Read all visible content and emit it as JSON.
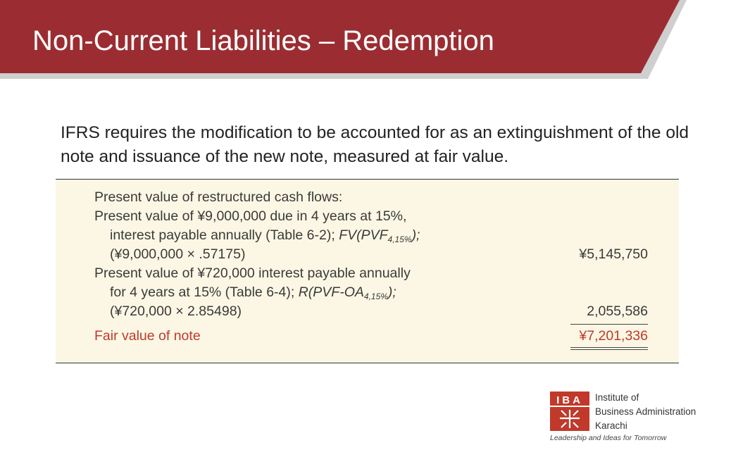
{
  "header": {
    "title": "Non-Current Liabilities – Redemption"
  },
  "intro": "IFRS requires the modification to be accounted for as an extinguishment of the old note and issuance of the new note, measured at fair value.",
  "table": {
    "heading": "Present value of restructured cash flows:",
    "principal": {
      "line1": "Present value of ¥9,000,000 due in 4 years at 15%,",
      "line2_prefix": "interest payable annually (Table 6-2); ",
      "line2_formula": "FV(PVF",
      "line2_sub": "4,15%",
      "line2_end": ");",
      "line3": "(¥9,000,000 × .57175)",
      "amount": "¥5,145,750"
    },
    "interest": {
      "line1": "Present value of ¥720,000 interest payable annually",
      "line2_prefix": "for 4 years at 15% (Table 6-4); ",
      "line2_formula": "R(PVF-OA",
      "line2_sub": "4,15%",
      "line2_end": ");",
      "line3": "(¥720,000 × 2.85498)",
      "amount": "2,055,586"
    },
    "total": {
      "label": "Fair value of note",
      "amount": "¥7,201,336"
    }
  },
  "logo": {
    "letters": "IBA",
    "name_line1": "Institute of",
    "name_line2": "Business Administration",
    "name_line3": "Karachi",
    "tagline": "Leadership and Ideas for Tomorrow"
  },
  "colors": {
    "banner": "#9b2d32",
    "accent_red": "#c0392b",
    "panel_bg": "#fbf7e4"
  }
}
